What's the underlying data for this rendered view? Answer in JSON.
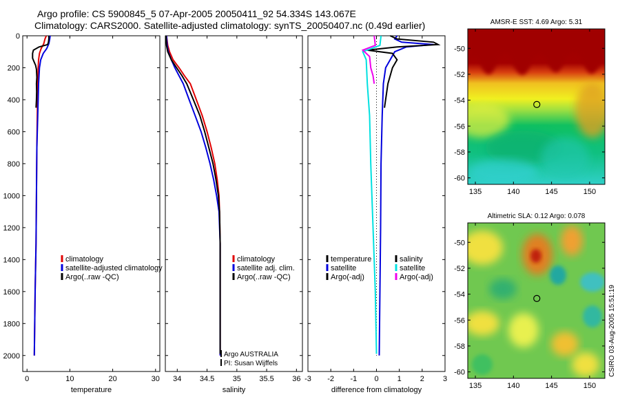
{
  "title_line1": "Argo profile: CS 5900845_5 07-Apr-2005 20050411_92 54.334S 143.067E",
  "title_line2": "Climatology: CARS2000. Satellite-adjusted climatology: synTS_20050407.nc (0.49d earlier)",
  "credit": "CSIRO 03-Aug-2005 15:51:19",
  "colors": {
    "climatology": "#e00000",
    "satellite": "#0000dd",
    "argo": "#000000",
    "clim_light": "#00e0e0",
    "argo_adj": "#ee00ee"
  },
  "chart_data": [
    {
      "type": "line",
      "id": "temperature",
      "xlabel": "temperature",
      "ylabel": "",
      "xlim": [
        -1,
        31
      ],
      "ylim": [
        0,
        2100
      ],
      "y_reversed": true,
      "xticks": [
        0,
        10,
        20,
        30
      ],
      "yticks": [
        0,
        200,
        400,
        600,
        800,
        1000,
        1200,
        1400,
        1600,
        1800,
        2000
      ],
      "legend": [
        "climatology",
        "satellite-adjusted climatology",
        "Argo(..raw -QC)"
      ],
      "series": [
        {
          "name": "climatology",
          "color": "climatology",
          "points": [
            [
              4.5,
              0
            ],
            [
              4.2,
              20
            ],
            [
              3.9,
              50
            ],
            [
              3.3,
              80
            ],
            [
              2.9,
              110
            ],
            [
              2.7,
              150
            ],
            [
              2.6,
              200
            ],
            [
              2.5,
              300
            ],
            [
              2.4,
              500
            ],
            [
              2.3,
              700
            ],
            [
              2.2,
              1000
            ],
            [
              2.1,
              1300
            ],
            [
              1.9,
              1600
            ],
            [
              1.8,
              1800
            ],
            [
              1.7,
              2000
            ]
          ]
        },
        {
          "name": "satellite",
          "color": "satellite",
          "points": [
            [
              5.4,
              0
            ],
            [
              5.3,
              20
            ],
            [
              5.1,
              50
            ],
            [
              4.6,
              80
            ],
            [
              3.8,
              110
            ],
            [
              3.2,
              150
            ],
            [
              2.9,
              200
            ],
            [
              2.7,
              300
            ],
            [
              2.5,
              500
            ],
            [
              2.3,
              700
            ],
            [
              2.2,
              1000
            ],
            [
              2.1,
              1300
            ],
            [
              1.9,
              1600
            ],
            [
              1.8,
              1800
            ],
            [
              1.7,
              2000
            ]
          ]
        },
        {
          "name": "argo",
          "color": "argo",
          "points": [
            [
              5.1,
              0
            ],
            [
              5.1,
              20
            ],
            [
              5.0,
              40
            ],
            [
              4.8,
              55
            ],
            [
              2.8,
              70
            ],
            [
              1.5,
              90
            ],
            [
              1.3,
              110
            ],
            [
              1.3,
              140
            ],
            [
              1.6,
              160
            ],
            [
              2.0,
              185
            ],
            [
              2.2,
              210
            ],
            [
              2.3,
              260
            ],
            [
              2.2,
              300
            ],
            [
              2.25,
              350
            ],
            [
              2.2,
              400
            ],
            [
              2.1,
              450
            ]
          ]
        }
      ]
    },
    {
      "type": "line",
      "id": "salinity",
      "xlabel": "salinity",
      "xlim": [
        33.8,
        36.1
      ],
      "ylim": [
        0,
        2100
      ],
      "y_reversed": true,
      "xticks": [
        34,
        34.5,
        35,
        35.5,
        36
      ],
      "yticks": [],
      "legend": [
        "climatology",
        "satellite adj. clim.",
        "Argo(..raw -QC)"
      ],
      "annotations": [
        "Argo AUSTRALIA",
        "PI: Susan Wijffels"
      ],
      "series": [
        {
          "name": "climatology",
          "color": "climatology",
          "points": [
            [
              33.82,
              0
            ],
            [
              33.84,
              60
            ],
            [
              33.87,
              100
            ],
            [
              33.93,
              150
            ],
            [
              34.03,
              200
            ],
            [
              34.12,
              250
            ],
            [
              34.22,
              300
            ],
            [
              34.32,
              400
            ],
            [
              34.42,
              500
            ],
            [
              34.5,
              600
            ],
            [
              34.57,
              700
            ],
            [
              34.63,
              800
            ],
            [
              34.67,
              900
            ],
            [
              34.7,
              1000
            ],
            [
              34.71,
              1100
            ],
            [
              34.72,
              1300
            ],
            [
              34.72,
              1600
            ],
            [
              34.72,
              2000
            ]
          ]
        },
        {
          "name": "satellite",
          "color": "satellite",
          "points": [
            [
              33.82,
              0
            ],
            [
              33.83,
              60
            ],
            [
              33.85,
              100
            ],
            [
              33.9,
              150
            ],
            [
              33.96,
              200
            ],
            [
              34.03,
              250
            ],
            [
              34.1,
              300
            ],
            [
              34.2,
              400
            ],
            [
              34.3,
              500
            ],
            [
              34.4,
              600
            ],
            [
              34.48,
              700
            ],
            [
              34.55,
              800
            ],
            [
              34.61,
              900
            ],
            [
              34.66,
              1000
            ],
            [
              34.7,
              1100
            ],
            [
              34.72,
              1300
            ],
            [
              34.72,
              1600
            ],
            [
              34.72,
              2000
            ]
          ]
        },
        {
          "name": "argo",
          "color": "argo",
          "points": [
            [
              33.81,
              0
            ],
            [
              33.82,
              60
            ],
            [
              33.84,
              100
            ],
            [
              33.9,
              150
            ],
            [
              33.99,
              200
            ],
            [
              34.08,
              250
            ],
            [
              34.16,
              300
            ],
            [
              34.27,
              400
            ],
            [
              34.38,
              500
            ],
            [
              34.46,
              600
            ],
            [
              34.53,
              700
            ],
            [
              34.6,
              800
            ],
            [
              34.65,
              900
            ],
            [
              34.69,
              1000
            ],
            [
              34.71,
              1100
            ],
            [
              34.72,
              1300
            ],
            [
              34.72,
              1600
            ],
            [
              34.72,
              1800
            ],
            [
              34.72,
              1990
            ]
          ]
        }
      ]
    },
    {
      "type": "line",
      "id": "difference",
      "xlabel": "difference from climatology",
      "xlim": [
        -3,
        3
      ],
      "ylim": [
        0,
        2100
      ],
      "y_reversed": true,
      "xticks": [
        -3,
        -2,
        -1,
        0,
        1,
        2,
        3
      ],
      "yticks": [],
      "legend_left": [
        "temperature",
        "satellite",
        "Argo(-adj)"
      ],
      "legend_right": [
        "salinity",
        "satellite",
        "Argo(-adj)"
      ],
      "zero_line": true,
      "series": [
        {
          "name": "temperature satellite",
          "color": "satellite",
          "points": [
            [
              0.9,
              0
            ],
            [
              0.8,
              20
            ],
            [
              1.1,
              40
            ],
            [
              2.5,
              55
            ],
            [
              1.3,
              70
            ],
            [
              0.8,
              100
            ],
            [
              0.6,
              150
            ],
            [
              0.4,
              200
            ],
            [
              0.3,
              300
            ],
            [
              0.25,
              500
            ],
            [
              0.2,
              800
            ],
            [
              0.18,
              1200
            ],
            [
              0.15,
              1600
            ],
            [
              0.12,
              2000
            ]
          ]
        },
        {
          "name": "temperature Argo(-adj)",
          "color": "argo",
          "points": [
            [
              0.6,
              0
            ],
            [
              0.9,
              20
            ],
            [
              2.5,
              40
            ],
            [
              2.7,
              55
            ],
            [
              0.9,
              70
            ],
            [
              -0.4,
              90
            ],
            [
              0.7,
              110
            ],
            [
              0.9,
              150
            ],
            [
              0.7,
              200
            ],
            [
              0.5,
              300
            ],
            [
              0.35,
              450
            ]
          ]
        },
        {
          "name": "salinity satellite",
          "color": "clim_light",
          "points": [
            [
              0.2,
              0
            ],
            [
              0.15,
              60
            ],
            [
              -0.6,
              100
            ],
            [
              -0.45,
              150
            ],
            [
              -0.4,
              300
            ],
            [
              -0.3,
              500
            ],
            [
              -0.25,
              800
            ],
            [
              -0.15,
              1200
            ],
            [
              -0.05,
              1600
            ],
            [
              0.0,
              1990
            ]
          ]
        },
        {
          "name": "salinity Argo(-adj)",
          "color": "argo_adj",
          "points": [
            [
              -0.1,
              0
            ],
            [
              -0.05,
              60
            ],
            [
              -0.6,
              90
            ],
            [
              -0.3,
              130
            ],
            [
              -0.25,
              200
            ],
            [
              -0.15,
              250
            ],
            [
              -0.1,
              300
            ]
          ]
        }
      ]
    },
    {
      "type": "heatmap",
      "id": "sst_map",
      "title": "AMSR-E SST: 4.69 Argo: 5.31",
      "xlim": [
        134,
        152
      ],
      "ylim": [
        -60.5,
        -48.5
      ],
      "xticks": [
        135,
        140,
        145,
        150
      ],
      "yticks": [
        -60,
        -58,
        -56,
        -54,
        -52,
        -50
      ],
      "marker": [
        143.067,
        -54.334
      ]
    },
    {
      "type": "heatmap",
      "id": "sla_map",
      "title": "Altimetric SLA: 0.12 Argo: 0.078",
      "xlim": [
        134,
        152
      ],
      "ylim": [
        -60.5,
        -48.5
      ],
      "xticks": [
        135,
        140,
        145,
        150
      ],
      "yticks": [
        -60,
        -58,
        -56,
        -54,
        -52,
        -50
      ],
      "marker": [
        143.067,
        -54.334
      ]
    }
  ]
}
